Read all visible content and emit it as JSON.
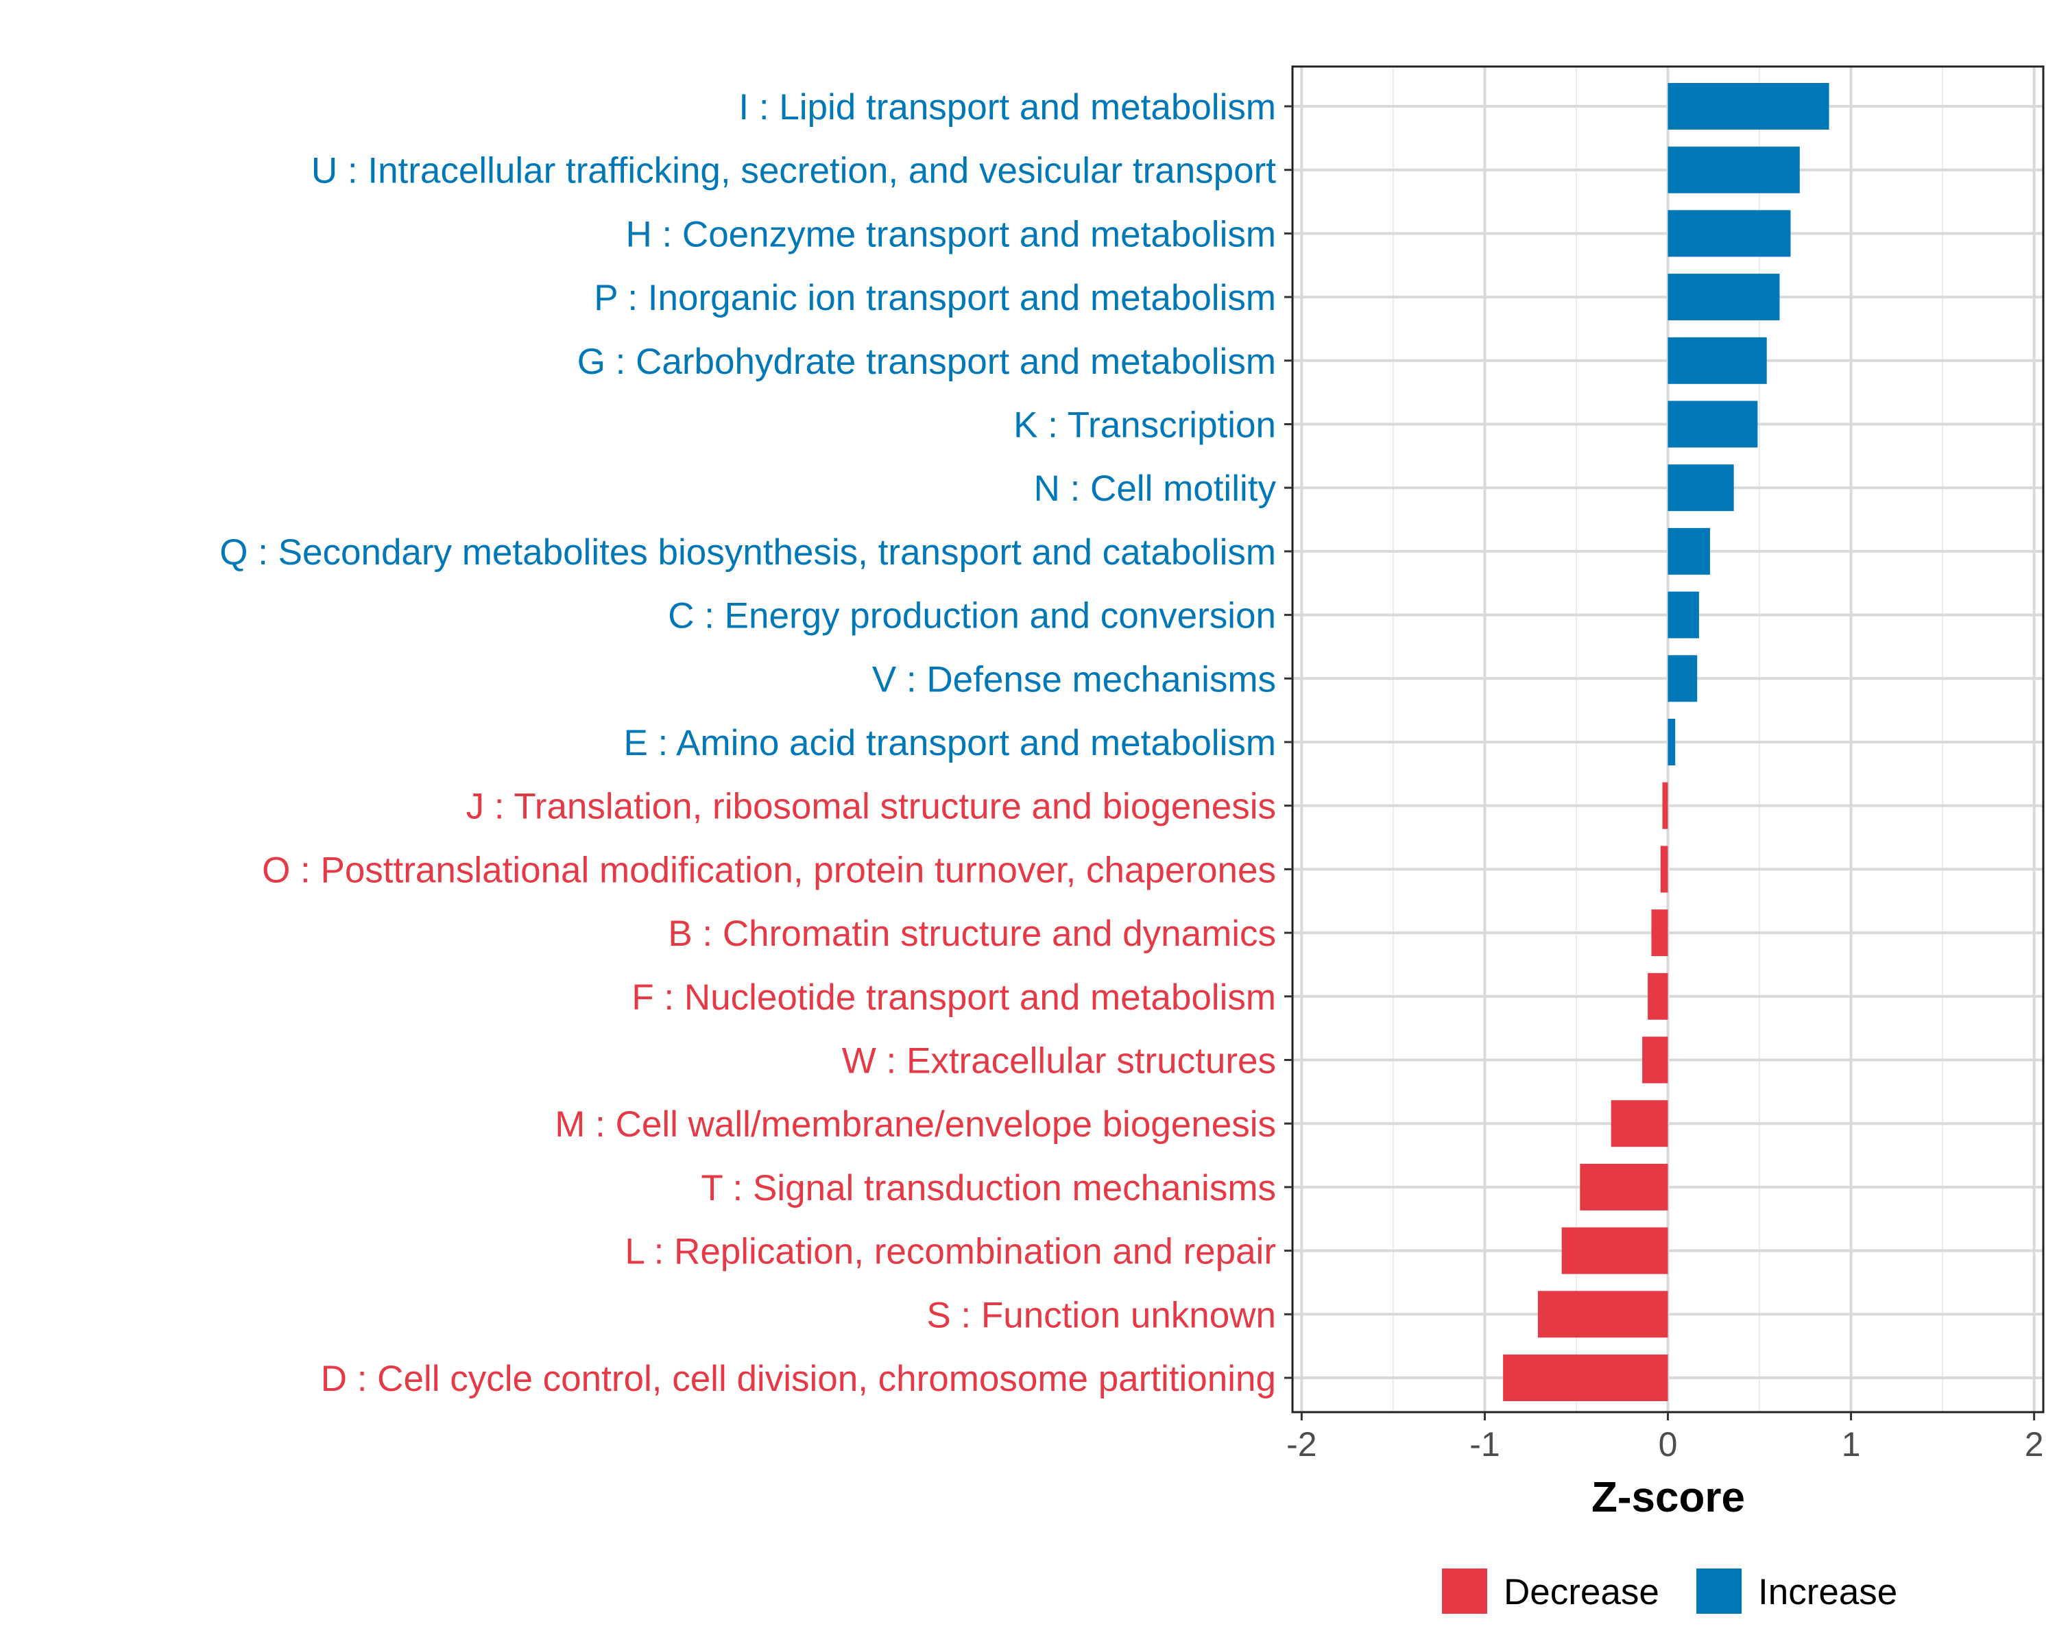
{
  "chart_data": {
    "type": "bar",
    "orientation": "horizontal",
    "xlabel": "Z-score",
    "xlim": [
      -2.05,
      2.05
    ],
    "xticks": [
      -2,
      -1,
      0,
      1,
      2
    ],
    "xtick_labels": [
      "-2",
      "-1",
      "0",
      "1",
      "2"
    ],
    "grid": true,
    "colors": {
      "Decrease": "#E63946",
      "Increase": "#0077B6"
    },
    "categories": [
      "I : Lipid transport and metabolism",
      "U : Intracellular trafficking, secretion, and vesicular transport",
      "H : Coenzyme transport and metabolism",
      "P : Inorganic ion transport and metabolism",
      "G : Carbohydrate transport and metabolism",
      "K : Transcription",
      "N : Cell motility",
      "Q : Secondary metabolites biosynthesis, transport and catabolism",
      "C : Energy production and conversion",
      "V : Defense mechanisms",
      "E : Amino acid transport and metabolism",
      "J : Translation, ribosomal structure and biogenesis",
      "O : Posttranslational modification, protein turnover, chaperones",
      "B : Chromatin structure and dynamics",
      "F : Nucleotide transport and metabolism",
      "W : Extracellular structures",
      "M : Cell wall/membrane/envelope biogenesis",
      "T : Signal transduction mechanisms",
      "L : Replication, recombination and repair",
      "S : Function unknown",
      "D : Cell cycle control, cell division, chromosome partitioning"
    ],
    "values": [
      0.88,
      0.72,
      0.67,
      0.61,
      0.54,
      0.49,
      0.36,
      0.23,
      0.17,
      0.16,
      0.04,
      -0.03,
      -0.04,
      -0.09,
      -0.11,
      -0.14,
      -0.31,
      -0.48,
      -0.58,
      -0.71,
      -0.9
    ],
    "groups": [
      "Increase",
      "Increase",
      "Increase",
      "Increase",
      "Increase",
      "Increase",
      "Increase",
      "Increase",
      "Increase",
      "Increase",
      "Increase",
      "Decrease",
      "Decrease",
      "Decrease",
      "Decrease",
      "Decrease",
      "Decrease",
      "Decrease",
      "Decrease",
      "Decrease",
      "Decrease"
    ],
    "legend": {
      "position": "bottom",
      "entries": [
        {
          "label": "Decrease",
          "color": "#E63946"
        },
        {
          "label": "Increase",
          "color": "#0077B6"
        }
      ]
    }
  }
}
